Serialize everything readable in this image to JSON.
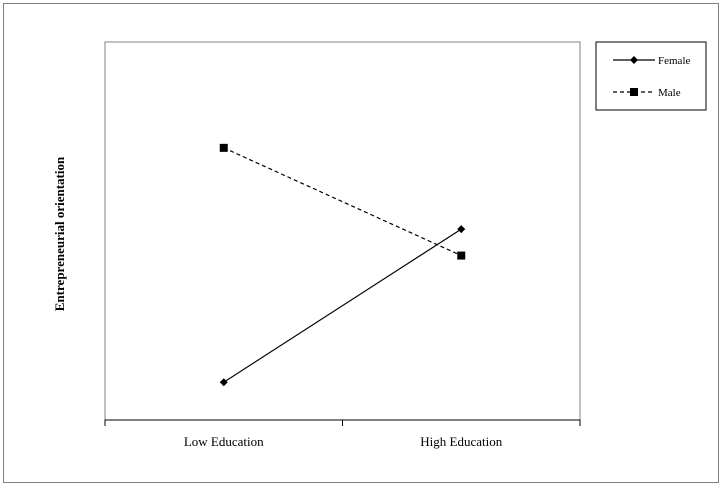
{
  "chart_data": {
    "type": "line",
    "categories": [
      "Low Education",
      "High Education"
    ],
    "ylabel": "Entrepreneurial orientation",
    "xlabel": "",
    "title": "",
    "ylim": [
      0,
      10
    ],
    "grid": false,
    "legend_position": "top-right, outside plot",
    "series": [
      {
        "name": "Female",
        "values": [
          1.0,
          5.05
        ],
        "line_style": "solid",
        "marker": "diamond",
        "color": "#000000"
      },
      {
        "name": "Male",
        "values": [
          7.2,
          4.35
        ],
        "line_style": "dashed",
        "marker": "square",
        "color": "#000000"
      }
    ]
  }
}
